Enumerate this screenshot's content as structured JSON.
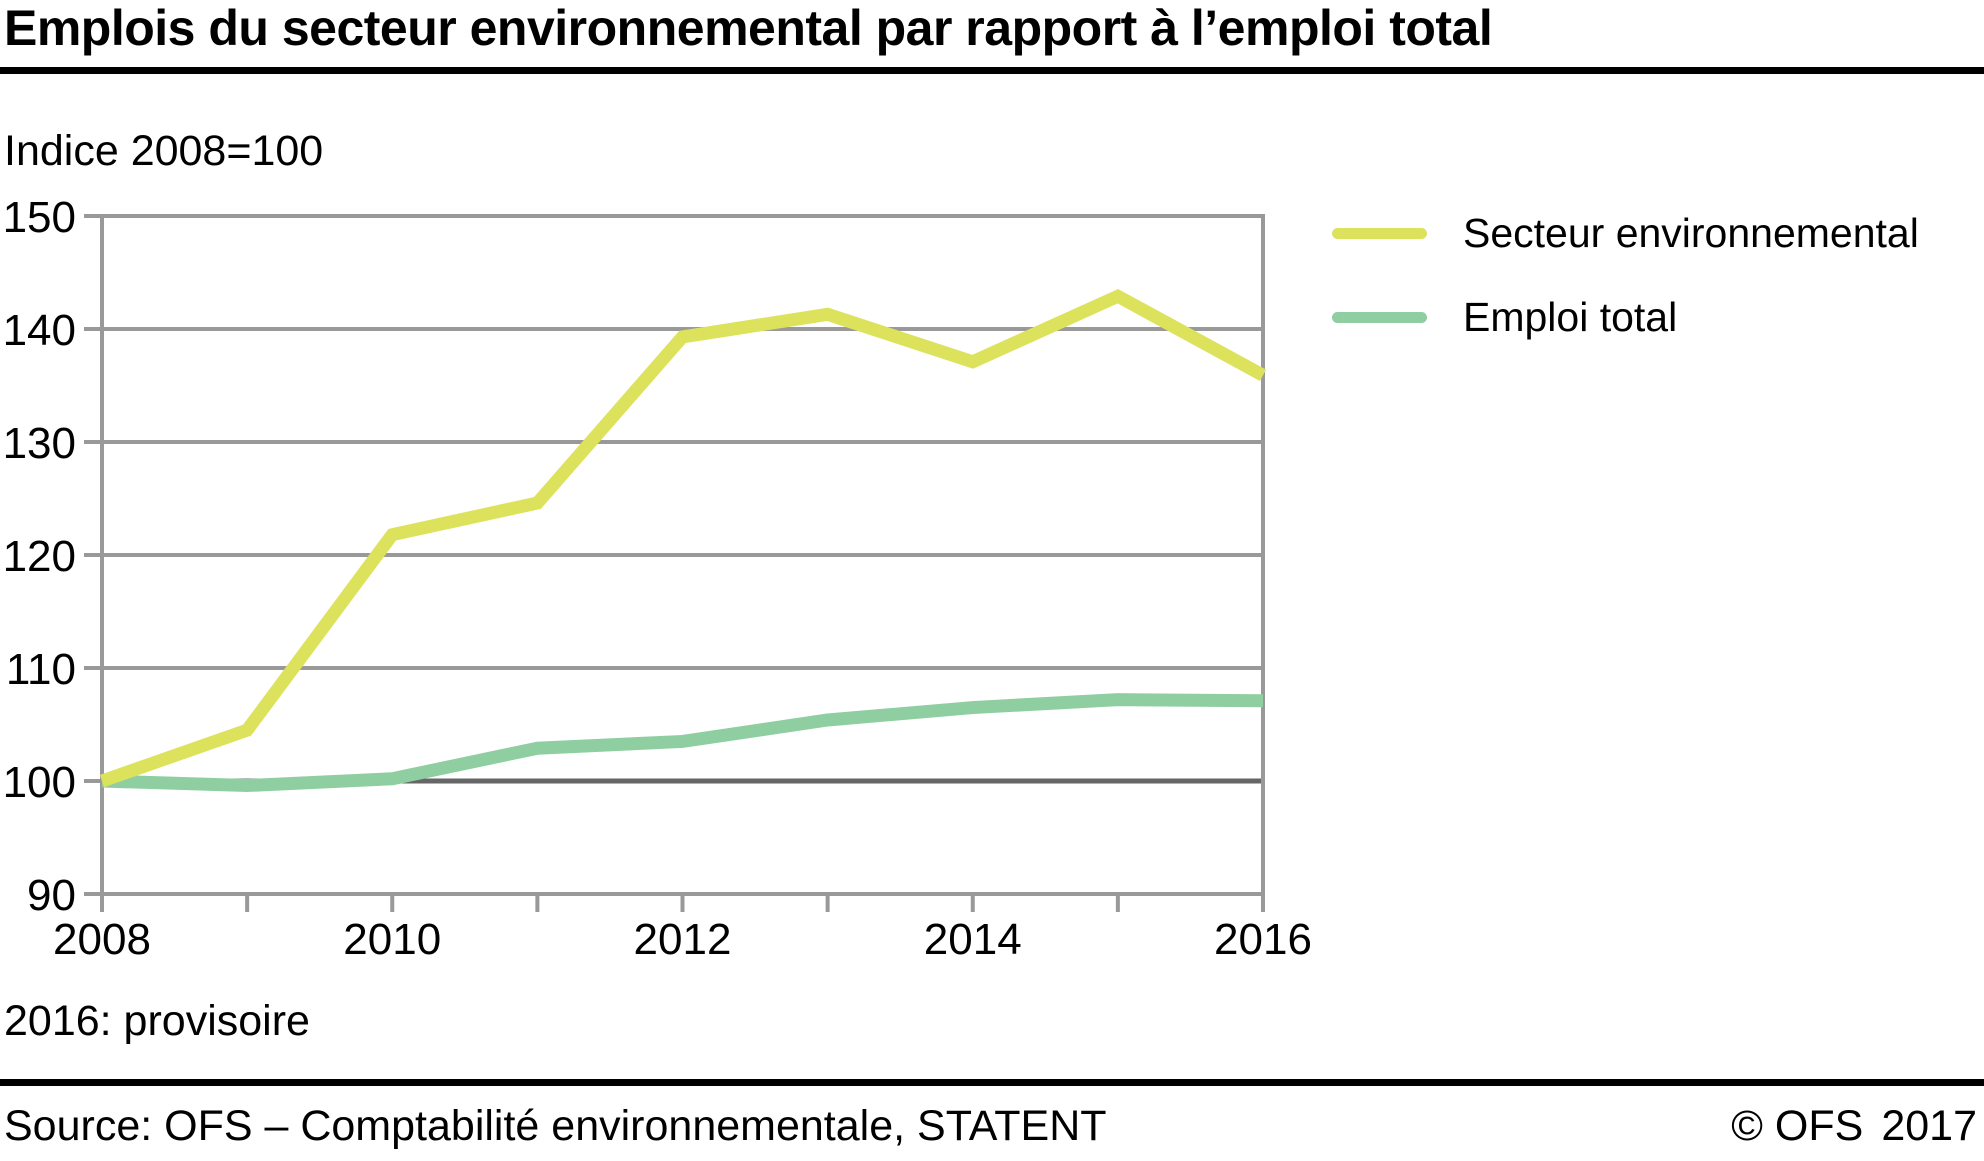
{
  "header": {
    "title": "Emplois du secteur environnemental par rapport à l’emploi total",
    "unit_label": "Indice 2008=100"
  },
  "chart_data": {
    "type": "line",
    "x": [
      2008,
      2009,
      2010,
      2011,
      2012,
      2013,
      2014,
      2015,
      2016
    ],
    "series": [
      {
        "name": "Secteur environnemental",
        "color": "#dde25c",
        "values": [
          100,
          104.5,
          121.8,
          124.6,
          139.3,
          141.3,
          137.1,
          142.9,
          135.9
        ]
      },
      {
        "name": "Emploi total",
        "color": "#8fcea1",
        "values": [
          100,
          99.6,
          100.2,
          102.9,
          103.5,
          105.4,
          106.5,
          107.2,
          107.1
        ]
      }
    ],
    "ylim": [
      90,
      150
    ],
    "yticks": [
      90,
      100,
      110,
      120,
      130,
      140,
      150
    ],
    "xtick_labeled": [
      2008,
      2010,
      2012,
      2014,
      2016
    ],
    "baseline_value": 100,
    "grid": true,
    "legend_position": "right-top",
    "title": "Emplois du secteur environnemental par rapport à l’emploi total",
    "xlabel": "",
    "ylabel": "Indice 2008=100"
  },
  "colors": {
    "grid": "#999999",
    "baseline_grid": "#666666",
    "axis": "#999999",
    "text": "#000000",
    "rule": "#000000"
  },
  "footer": {
    "note": "2016: provisoire",
    "source": "Source: OFS – Comptabilité environnementale, STATENT",
    "copyright": "© OFS",
    "year": "2017"
  }
}
